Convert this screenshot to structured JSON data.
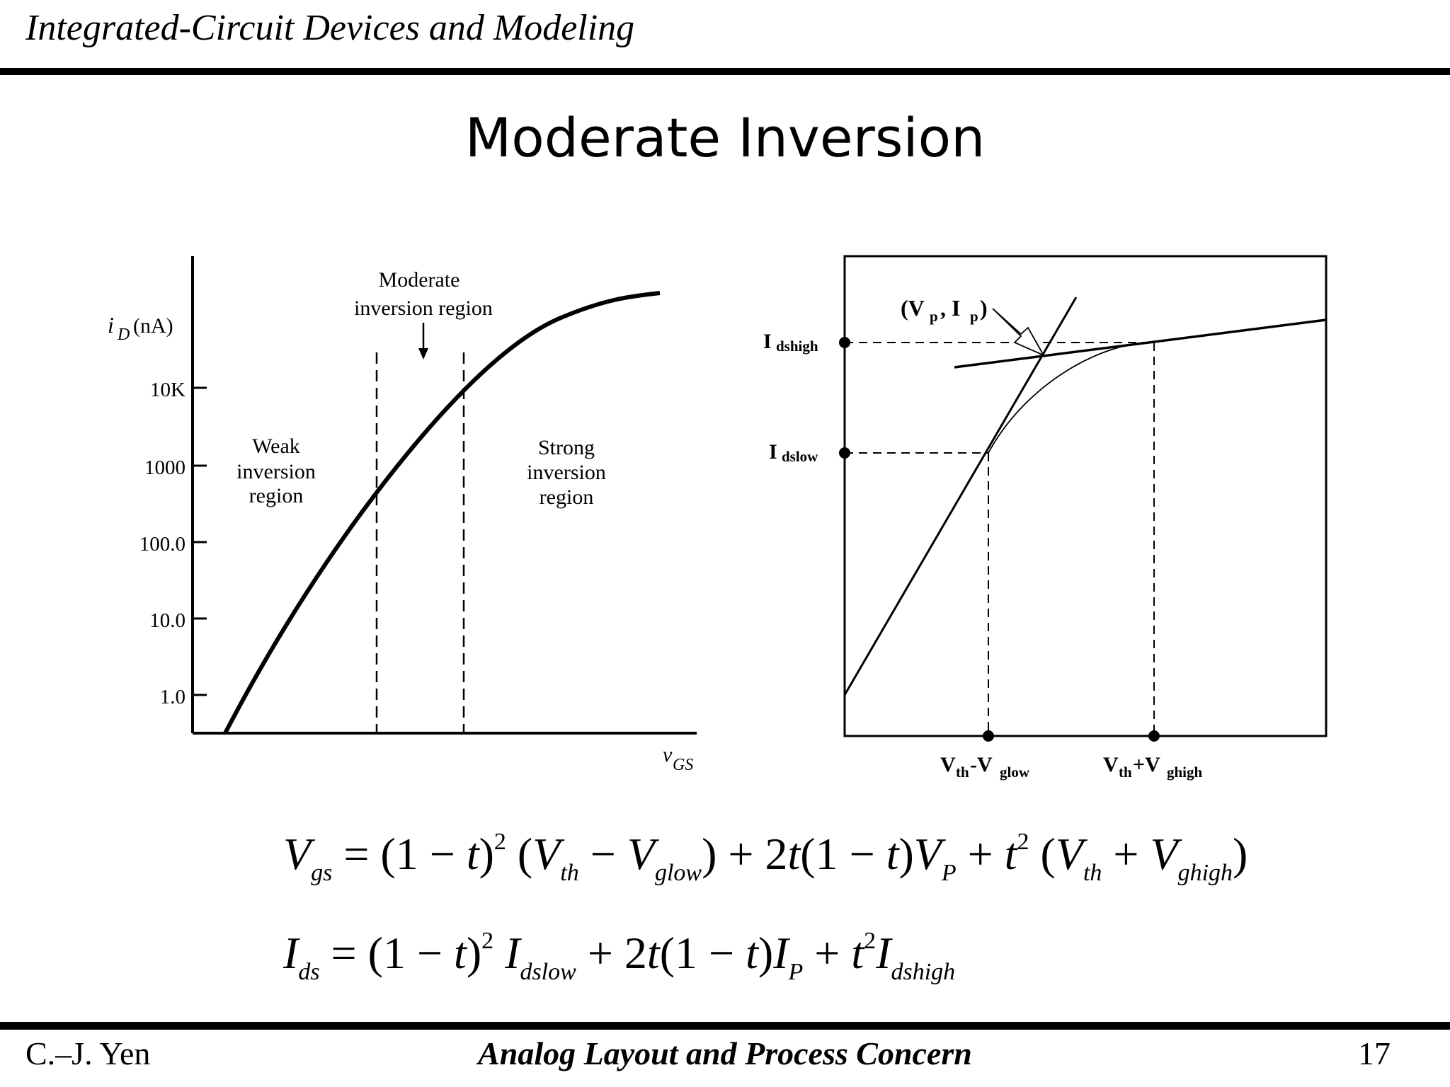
{
  "header": {
    "title": "Integrated-Circuit Devices and Modeling"
  },
  "slide": {
    "title": "Moderate Inversion"
  },
  "left_chart": {
    "ylabel": "i",
    "ylabel_sub": "D",
    "ylabel_unit": "(nA)",
    "xlabel": "v",
    "xlabel_sub": "GS",
    "yticks": [
      "10K",
      "1000",
      "100.0",
      "10.0",
      "1.0"
    ],
    "regions": {
      "moderate_line1": "Moderate",
      "moderate_line2": "inversion region",
      "weak_line1": "Weak",
      "weak_line2": "inversion",
      "weak_line3": "region",
      "strong_line1": "Strong",
      "strong_line2": "inversion",
      "strong_line3": "region"
    }
  },
  "right_chart": {
    "point_label": "(V",
    "point_label_p": "p",
    "point_label_i": ", I",
    "point_label_close": ")",
    "idshigh": "I",
    "idshigh_sub": "dshigh",
    "idslow": "I",
    "idslow_sub": "dslow",
    "vlow": "V",
    "vlow_sub1": "th",
    "vlow_mid": "-V",
    "vlow_sub2": "glow",
    "vhigh": "V",
    "vhigh_sub1": "th",
    "vhigh_mid": "+V",
    "vhigh_sub2": "ghigh"
  },
  "chart_data": [
    {
      "type": "line",
      "title": "",
      "xlabel": "vGS",
      "ylabel": "iD (nA)",
      "y_scale": "log",
      "yticks": [
        "1.0",
        "10.0",
        "100.0",
        "1000",
        "10K"
      ],
      "series": [
        {
          "x_rel": [
            0,
            0.25,
            0.5,
            0.75,
            1.0
          ],
          "values": [
            0.6,
            30,
            900,
            9000,
            30000
          ]
        }
      ],
      "annotations": [
        "Weak inversion region",
        "Moderate inversion region",
        "Strong inversion region"
      ]
    }
  ],
  "equations": {
    "vgs": "Vgs = (1 − t)² (Vth − Vglow) + 2t(1 − t)VP + t² (Vth + Vghigh)",
    "ids": "Ids = (1 − t)² Idslow + 2t(1 − t)IP + t² Idshigh"
  },
  "footer": {
    "author": "C.–J. Yen",
    "course": "Analog Layout and Process Concern",
    "page": "17"
  }
}
